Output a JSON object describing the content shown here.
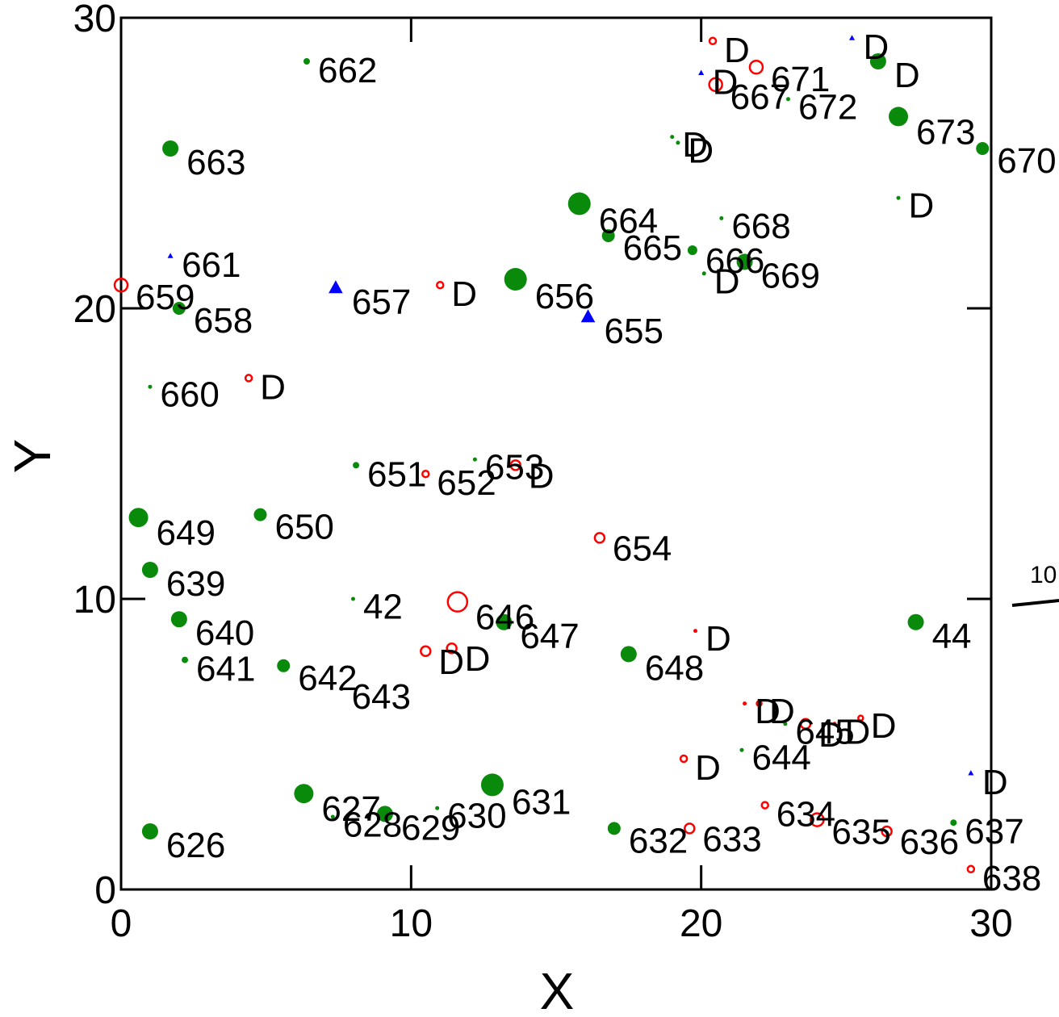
{
  "chart_data": {
    "type": "scatter",
    "title": "",
    "xlabel": "X",
    "ylabel": "Y",
    "xlim": [
      0,
      30
    ],
    "ylim": [
      0,
      30
    ],
    "x_ticks": [
      "0",
      "10",
      "20",
      "30"
    ],
    "y_ticks": [
      "0",
      "10",
      "20",
      "30"
    ],
    "grid": false,
    "legend": "none",
    "colors": {
      "green": "#0a8a0a",
      "red": "#ff0000",
      "blue": "#0000ff"
    },
    "edge_label": "10",
    "points": [
      {
        "x": 1.0,
        "y": 2.0,
        "size": 5,
        "color": "green",
        "marker": "dot",
        "label": "626"
      },
      {
        "x": 6.3,
        "y": 3.3,
        "size": 6,
        "color": "green",
        "marker": "dot",
        "label": "627"
      },
      {
        "x": 7.3,
        "y": 2.5,
        "size": 1,
        "color": "green",
        "marker": "dot",
        "label": "628"
      },
      {
        "x": 9.1,
        "y": 2.6,
        "size": 5,
        "color": "green",
        "marker": "dot",
        "label": "629"
      },
      {
        "x": 10.9,
        "y": 2.8,
        "size": 1,
        "color": "green",
        "marker": "dot",
        "label": "630"
      },
      {
        "x": 12.8,
        "y": 3.6,
        "size": 7,
        "color": "green",
        "marker": "dot",
        "label": "631"
      },
      {
        "x": 17.0,
        "y": 2.1,
        "size": 4,
        "color": "green",
        "marker": "dot",
        "label": "632"
      },
      {
        "x": 19.6,
        "y": 2.1,
        "size": 3,
        "color": "red",
        "marker": "ring",
        "label": "633"
      },
      {
        "x": 22.2,
        "y": 2.9,
        "size": 2,
        "color": "red",
        "marker": "ring",
        "label": "634"
      },
      {
        "x": 24.0,
        "y": 2.4,
        "size": 4,
        "color": "red",
        "marker": "ring",
        "label": "635"
      },
      {
        "x": 26.4,
        "y": 2.0,
        "size": 3,
        "color": "red",
        "marker": "ring",
        "label": "636"
      },
      {
        "x": 28.7,
        "y": 2.3,
        "size": 2,
        "color": "green",
        "marker": "dot",
        "label": "637"
      },
      {
        "x": 29.3,
        "y": 0.7,
        "size": 2,
        "color": "red",
        "marker": "ring",
        "label": "638"
      },
      {
        "x": 1.0,
        "y": 11.0,
        "size": 5,
        "color": "green",
        "marker": "dot",
        "label": "639"
      },
      {
        "x": 2.0,
        "y": 9.3,
        "size": 5,
        "color": "green",
        "marker": "dot",
        "label": "640"
      },
      {
        "x": 2.2,
        "y": 7.9,
        "size": 2,
        "color": "green",
        "marker": "dot",
        "label": "641"
      },
      {
        "x": 5.6,
        "y": 7.7,
        "size": 4,
        "color": "green",
        "marker": "dot",
        "label": "642"
      },
      {
        "x": 7.6,
        "y": 6.9,
        "size": 1,
        "color": "green",
        "marker": "dot",
        "label": "643"
      },
      {
        "x": 21.4,
        "y": 4.8,
        "size": 1,
        "color": "green",
        "marker": "dot",
        "label": "644"
      },
      {
        "x": 22.9,
        "y": 5.7,
        "size": 1,
        "color": "green",
        "marker": "dot",
        "label": "645"
      },
      {
        "x": 11.6,
        "y": 9.9,
        "size": 6,
        "color": "red",
        "marker": "ring",
        "label": "646"
      },
      {
        "x": 13.2,
        "y": 9.2,
        "size": 5,
        "color": "green",
        "marker": "dot",
        "label": "647"
      },
      {
        "x": 17.5,
        "y": 8.1,
        "size": 5,
        "color": "green",
        "marker": "dot",
        "label": "648"
      },
      {
        "x": 0.6,
        "y": 12.8,
        "size": 6,
        "color": "green",
        "marker": "dot",
        "label": "649"
      },
      {
        "x": 4.8,
        "y": 12.9,
        "size": 4,
        "color": "green",
        "marker": "dot",
        "label": "650"
      },
      {
        "x": 8.1,
        "y": 14.6,
        "size": 2,
        "color": "green",
        "marker": "dot",
        "label": "651"
      },
      {
        "x": 10.5,
        "y": 14.3,
        "size": 2,
        "color": "red",
        "marker": "ring",
        "label": "652"
      },
      {
        "x": 12.2,
        "y": 14.8,
        "size": 1,
        "color": "green",
        "marker": "dot",
        "label": "653"
      },
      {
        "x": 16.5,
        "y": 12.1,
        "size": 3,
        "color": "red",
        "marker": "ring",
        "label": "654"
      },
      {
        "x": 16.1,
        "y": 19.7,
        "size": 5,
        "color": "blue",
        "marker": "triangle",
        "label": "655"
      },
      {
        "x": 13.6,
        "y": 21.0,
        "size": 7,
        "color": "green",
        "marker": "dot",
        "label": "656"
      },
      {
        "x": 7.4,
        "y": 20.7,
        "size": 5,
        "color": "blue",
        "marker": "triangle",
        "label": "657"
      },
      {
        "x": 2.0,
        "y": 20.0,
        "size": 4,
        "color": "green",
        "marker": "dot",
        "label": "658"
      },
      {
        "x": 0.0,
        "y": 20.8,
        "size": 4,
        "color": "red",
        "marker": "ring",
        "label": "659"
      },
      {
        "x": 1.0,
        "y": 17.3,
        "size": 1,
        "color": "green",
        "marker": "dot",
        "label": "660"
      },
      {
        "x": 1.7,
        "y": 21.8,
        "size": 2,
        "color": "blue",
        "marker": "triangle",
        "label": "661"
      },
      {
        "x": 6.4,
        "y": 28.5,
        "size": 2,
        "color": "green",
        "marker": "dot",
        "label": "662"
      },
      {
        "x": 1.7,
        "y": 25.5,
        "size": 5,
        "color": "green",
        "marker": "dot",
        "label": "663"
      },
      {
        "x": 15.8,
        "y": 23.6,
        "size": 7,
        "color": "green",
        "marker": "dot",
        "label": "664"
      },
      {
        "x": 16.8,
        "y": 22.5,
        "size": 4,
        "color": "green",
        "marker": "dot",
        "label": "665"
      },
      {
        "x": 19.7,
        "y": 22.0,
        "size": 3,
        "color": "green",
        "marker": "dot",
        "label": "666"
      },
      {
        "x": 20.5,
        "y": 27.7,
        "size": 4,
        "color": "red",
        "marker": "ring",
        "label": "667"
      },
      {
        "x": 20.7,
        "y": 23.1,
        "size": 1,
        "color": "green",
        "marker": "dot",
        "label": "668"
      },
      {
        "x": 21.5,
        "y": 21.6,
        "size": 5,
        "color": "green",
        "marker": "dot",
        "label": "669"
      },
      {
        "x": 29.7,
        "y": 25.5,
        "size": 4,
        "color": "green",
        "marker": "dot",
        "label": "670"
      },
      {
        "x": 21.9,
        "y": 28.3,
        "size": 4,
        "color": "red",
        "marker": "ring",
        "label": "671"
      },
      {
        "x": 23.0,
        "y": 27.2,
        "size": 1,
        "color": "green",
        "marker": "dot",
        "label": "672"
      },
      {
        "x": 26.8,
        "y": 26.6,
        "size": 6,
        "color": "green",
        "marker": "dot",
        "label": "673"
      },
      {
        "x": 8.0,
        "y": 10.0,
        "size": 1,
        "color": "green",
        "marker": "dot",
        "label": "42"
      },
      {
        "x": 27.4,
        "y": 9.2,
        "size": 5,
        "color": "green",
        "marker": "dot",
        "label": "44"
      },
      {
        "x": 20.4,
        "y": 29.2,
        "size": 2,
        "color": "red",
        "marker": "ring",
        "label": "D"
      },
      {
        "x": 25.2,
        "y": 29.3,
        "size": 2,
        "color": "blue",
        "marker": "triangle",
        "label": "D"
      },
      {
        "x": 26.1,
        "y": 28.5,
        "size": 5,
        "color": "green",
        "marker": "dot",
        "label": "D"
      },
      {
        "x": 20.0,
        "y": 28.1,
        "size": 2,
        "color": "blue",
        "marker": "triangle",
        "label": "D"
      },
      {
        "x": 19.0,
        "y": 25.9,
        "size": 1,
        "color": "green",
        "marker": "dot",
        "label": "D"
      },
      {
        "x": 19.2,
        "y": 25.7,
        "size": 1,
        "color": "green",
        "marker": "dot",
        "label": "D"
      },
      {
        "x": 26.8,
        "y": 23.8,
        "size": 1,
        "color": "green",
        "marker": "dot",
        "label": "D"
      },
      {
        "x": 20.1,
        "y": 21.2,
        "size": 1,
        "color": "green",
        "marker": "dot",
        "label": "D"
      },
      {
        "x": 11.0,
        "y": 20.8,
        "size": 2,
        "color": "red",
        "marker": "ring",
        "label": "D"
      },
      {
        "x": 4.4,
        "y": 17.6,
        "size": 2,
        "color": "red",
        "marker": "ring",
        "label": "D"
      },
      {
        "x": 13.6,
        "y": 14.6,
        "size": 3,
        "color": "red",
        "marker": "ring",
        "label": "D"
      },
      {
        "x": 10.5,
        "y": 8.2,
        "size": 3,
        "color": "red",
        "marker": "ring",
        "label": "D"
      },
      {
        "x": 11.4,
        "y": 8.3,
        "size": 3,
        "color": "red",
        "marker": "ring",
        "label": "D"
      },
      {
        "x": 19.8,
        "y": 8.9,
        "size": 1,
        "color": "red",
        "marker": "dot",
        "label": "D"
      },
      {
        "x": 21.5,
        "y": 6.4,
        "size": 1,
        "color": "red",
        "marker": "dot",
        "label": "D"
      },
      {
        "x": 22.0,
        "y": 6.4,
        "size": 1,
        "color": "red",
        "marker": "ring",
        "label": "D"
      },
      {
        "x": 23.6,
        "y": 5.7,
        "size": 3,
        "color": "red",
        "marker": "ring",
        "label": "D"
      },
      {
        "x": 24.6,
        "y": 5.7,
        "size": 1,
        "color": "red",
        "marker": "dot",
        "label": "D"
      },
      {
        "x": 25.5,
        "y": 5.9,
        "size": 1,
        "color": "red",
        "marker": "ring",
        "label": "D"
      },
      {
        "x": 19.4,
        "y": 4.5,
        "size": 2,
        "color": "red",
        "marker": "ring",
        "label": "D"
      },
      {
        "x": 29.3,
        "y": 4.0,
        "size": 2,
        "color": "blue",
        "marker": "triangle",
        "label": "D"
      }
    ]
  }
}
